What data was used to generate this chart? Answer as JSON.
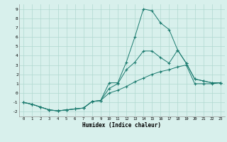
{
  "title": "",
  "xlabel": "Humidex (Indice chaleur)",
  "x": [
    0,
    1,
    2,
    3,
    4,
    5,
    6,
    7,
    8,
    9,
    10,
    11,
    12,
    13,
    14,
    15,
    16,
    17,
    18,
    19,
    20,
    21,
    22,
    23
  ],
  "series1": [
    -1.0,
    -1.2,
    -1.5,
    -1.8,
    -1.9,
    -1.8,
    -1.7,
    -1.6,
    -0.9,
    -0.8,
    1.1,
    1.1,
    3.3,
    6.0,
    9.0,
    8.8,
    7.5,
    6.8,
    4.6,
    3.2,
    1.5,
    1.3,
    1.1,
    1.1
  ],
  "series2": [
    -1.0,
    -1.2,
    -1.5,
    -1.8,
    -1.9,
    -1.8,
    -1.7,
    -1.6,
    -0.9,
    -0.8,
    0.5,
    1.0,
    2.5,
    3.3,
    4.5,
    4.5,
    3.8,
    3.2,
    4.6,
    3.2,
    1.5,
    1.3,
    1.1,
    1.1
  ],
  "series3": [
    -1.0,
    -1.2,
    -1.5,
    -1.8,
    -1.9,
    -1.8,
    -1.7,
    -1.6,
    -0.9,
    -0.8,
    0.0,
    0.3,
    0.7,
    1.2,
    1.6,
    2.0,
    2.3,
    2.5,
    2.8,
    3.0,
    1.0,
    1.0,
    1.0,
    1.1
  ],
  "line_color": "#1a7a6e",
  "bg_color": "#d8f0ec",
  "grid_color": "#b0d8d0",
  "ylim": [
    -2.5,
    9.5
  ],
  "xlim": [
    -0.5,
    23.5
  ],
  "yticks": [
    -2,
    -1,
    0,
    1,
    2,
    3,
    4,
    5,
    6,
    7,
    8,
    9
  ],
  "xticks": [
    0,
    1,
    2,
    3,
    4,
    5,
    6,
    7,
    8,
    9,
    10,
    11,
    12,
    13,
    14,
    15,
    16,
    17,
    18,
    19,
    20,
    21,
    22,
    23
  ]
}
